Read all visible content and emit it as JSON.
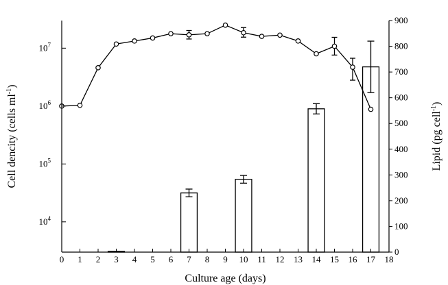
{
  "chart_data": {
    "type": "bar+line",
    "title": "",
    "xlabel": "Culture age (days)",
    "ylabel_left_main": "Cell dencity (cells ml",
    "ylabel_left_sup": "-1",
    "ylabel_left_end": ")",
    "ylabel_right_main": "Lipid (pg cell",
    "ylabel_right_sup": "-1",
    "ylabel_right_end": ")",
    "x_ticks": [
      "0",
      "1",
      "2",
      "3",
      "4",
      "5",
      "6",
      "7",
      "8",
      "9",
      "10",
      "11",
      "12",
      "13",
      "14",
      "15",
      "16",
      "17",
      "18"
    ],
    "xlim": [
      0,
      18
    ],
    "y_left": {
      "scale": "log",
      "lim": [
        3000,
        30000000
      ],
      "ticks": [
        {
          "value": 10000,
          "base": "10",
          "exp": "4"
        },
        {
          "value": 100000,
          "base": "10",
          "exp": "5"
        },
        {
          "value": 1000000,
          "base": "10",
          "exp": "6"
        },
        {
          "value": 10000000,
          "base": "10",
          "exp": "7"
        }
      ]
    },
    "y_right": {
      "scale": "linear",
      "lim": [
        0,
        900
      ],
      "ticks": [
        "0",
        "100",
        "200",
        "300",
        "400",
        "500",
        "600",
        "700",
        "800",
        "900"
      ]
    },
    "bars": {
      "name": "Lipid",
      "axis": "right",
      "x": [
        3,
        7,
        10,
        14,
        17
      ],
      "values": [
        3,
        230,
        283,
        557,
        720
      ],
      "errors": [
        0,
        15,
        15,
        20,
        100
      ]
    },
    "line": {
      "name": "Cell density",
      "axis": "left",
      "x": [
        0,
        1,
        2,
        3,
        4,
        5,
        6,
        7,
        8,
        9,
        10,
        11,
        12,
        13,
        14,
        15,
        16,
        17
      ],
      "values": [
        1000000,
        1030000,
        4600000,
        11800000,
        13300000,
        15000000,
        17800000,
        17000000,
        17800000,
        25000000,
        18500000,
        16000000,
        16800000,
        13300000,
        8000000,
        10800000,
        4700000,
        880000
      ],
      "error_upper": [
        0,
        0,
        0,
        0,
        0,
        0,
        0,
        3200000,
        0,
        0,
        4200000,
        0,
        0,
        0,
        0,
        4600000,
        2000000,
        0
      ],
      "error_lower": [
        0,
        0,
        0,
        0,
        0,
        0,
        0,
        2600000,
        0,
        0,
        3000000,
        0,
        0,
        0,
        0,
        3200000,
        1900000,
        0
      ]
    },
    "grid": false,
    "legend": "none"
  }
}
